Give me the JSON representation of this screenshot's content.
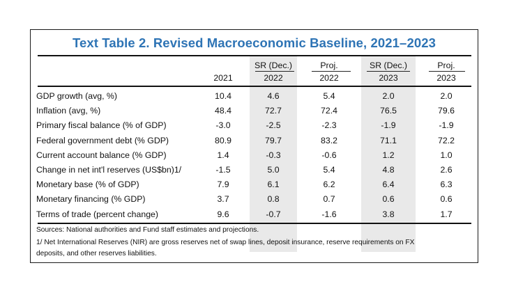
{
  "title": "Text Table 2. Revised Macroeconomic Baseline, 2021–2023",
  "columns": [
    {
      "top": "",
      "bottom": "2021"
    },
    {
      "top": "SR (Dec.)",
      "bottom": "2022"
    },
    {
      "top": "Proj.",
      "bottom": "2022"
    },
    {
      "top": "SR (Dec.)",
      "bottom": "2023"
    },
    {
      "top": "Proj.",
      "bottom": "2023"
    }
  ],
  "rows": [
    {
      "label": "GDP growth (avg, %)",
      "values": [
        "10.4",
        "4.6",
        "5.4",
        "2.0",
        "2.0"
      ]
    },
    {
      "label": "Inflation (avg, %)",
      "values": [
        "48.4",
        "72.7",
        "72.4",
        "76.5",
        "79.6"
      ]
    },
    {
      "label": "Primary fiscal balance (% of GDP)",
      "values": [
        "-3.0",
        "-2.5",
        "-2.3",
        "-1.9",
        "-1.9"
      ]
    },
    {
      "label": "Federal government debt (% GDP)",
      "values": [
        "80.9",
        "79.7",
        "83.2",
        "71.1",
        "72.2"
      ]
    },
    {
      "label": "Current account balance (% GDP)",
      "values": [
        "1.4",
        "-0.3",
        "-0.6",
        "1.2",
        "1.0"
      ]
    },
    {
      "label": "Change in net int'l reserves (US$bn)1/",
      "values": [
        "-1.5",
        "5.0",
        "5.4",
        "4.8",
        "2.6"
      ]
    },
    {
      "label": "Monetary base (% of GDP)",
      "values": [
        "7.9",
        "6.1",
        "6.2",
        "6.4",
        "6.3"
      ]
    },
    {
      "label": "Monetary financing (% GDP)",
      "values": [
        "3.7",
        "0.8",
        "0.7",
        "0.6",
        "0.6"
      ]
    },
    {
      "label": "Terms of trade (percent change)",
      "values": [
        "9.6",
        "-0.7",
        "-1.6",
        "3.8",
        "1.7"
      ]
    }
  ],
  "notes": {
    "sources": "Sources: National authorities and Fund staff estimates and projections.",
    "footnote_line1": "1/ Net International Reserves (NIR) are gross reserves net of swap lines, deposit insurance, reserve requirements on FX",
    "footnote_line2": "deposits, and other reserves liabilities."
  },
  "colors": {
    "title": "#2e74b5",
    "shade": "#e9e9e9"
  }
}
